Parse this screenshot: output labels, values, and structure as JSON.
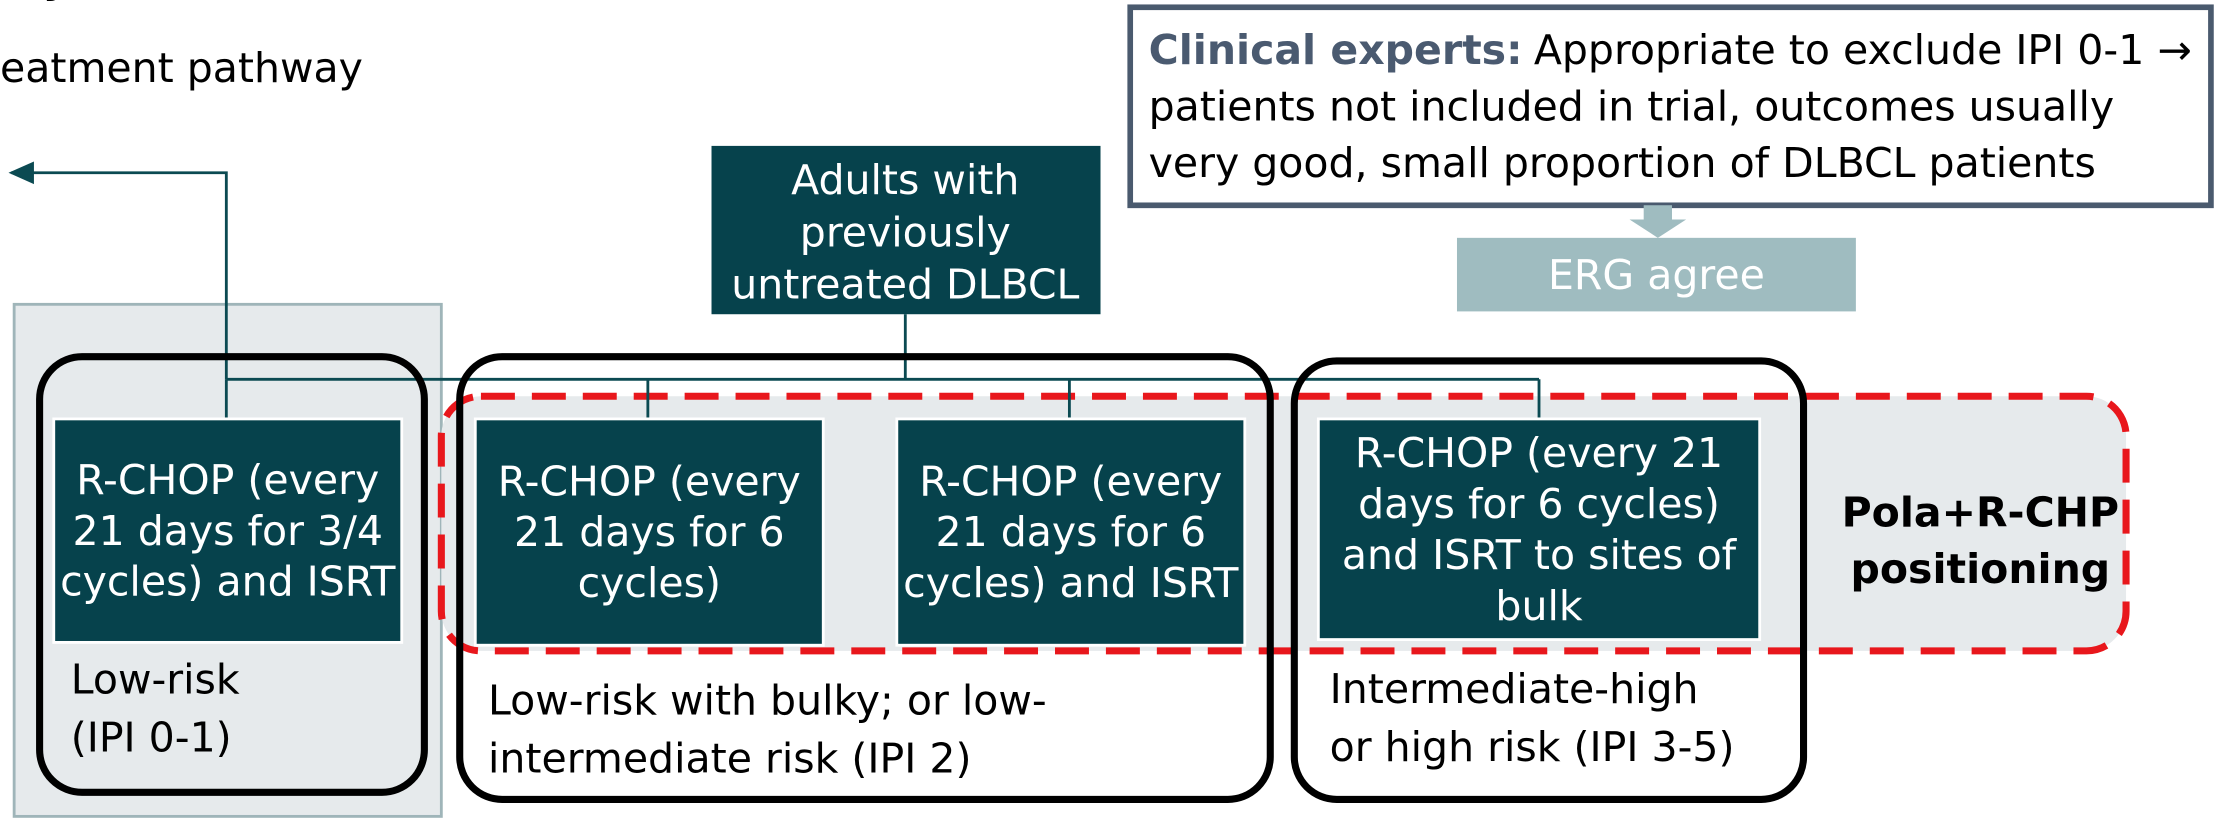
{
  "header": {
    "title": "y",
    "subtitle": "eatment pathway"
  },
  "callout": {
    "label": "Clinical experts:",
    "lines": [
      "Appropriate to exclude IPI 0-1 →",
      "patients not included in trial, outcomes usually",
      "very good, small proportion of DLBCL patients"
    ]
  },
  "erg": "ERG agree",
  "root": [
    "Adults with",
    "previously",
    "untreated DLBCL"
  ],
  "treatments": [
    [
      "R-CHOP (every",
      "21 days for 3/4",
      "cycles) and ISRT"
    ],
    [
      "R-CHOP (every",
      "21 days for 6",
      "cycles)"
    ],
    [
      "R-CHOP (every",
      "21 days for 6",
      "cycles) and ISRT"
    ],
    [
      "R-CHOP (every 21",
      "days for 6 cycles)",
      "and ISRT to sites of",
      "bulk"
    ]
  ],
  "groups": [
    [
      "Low-risk",
      "(IPI 0-1)"
    ],
    [
      "Low-risk with bulky; or low-",
      "intermediate risk (IPI 2)"
    ],
    [
      "Intermediate-high",
      "or high risk (IPI 3-5)"
    ]
  ],
  "positioning": [
    "Pola+R-CHP",
    "positioning"
  ]
}
